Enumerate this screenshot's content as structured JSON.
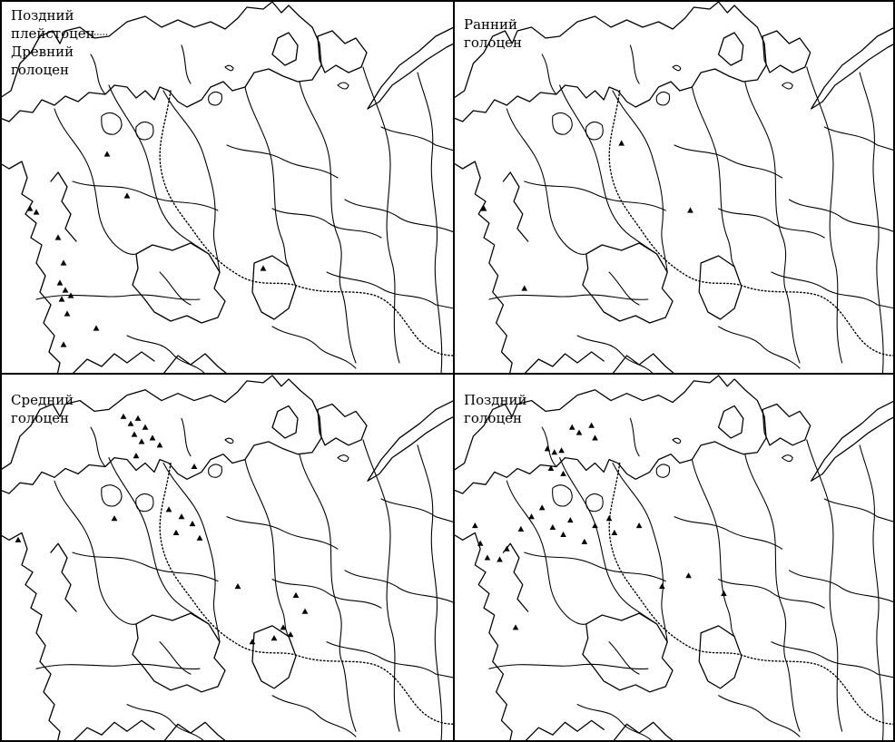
{
  "figure": {
    "panels": [
      {
        "id": "late-pleistocene-early-holocene",
        "label_lines": [
          "Поздний",
          "плейстоцен",
          "Древний",
          "голоцен"
        ],
        "legend": "dotted-line"
      },
      {
        "id": "early-holocene",
        "label_lines": [
          "Ранний",
          "голоцен"
        ]
      },
      {
        "id": "middle-holocene",
        "label_lines": [
          "Средний",
          "голоцен"
        ]
      },
      {
        "id": "late-holocene",
        "label_lines": [
          "Поздний",
          "голоцен"
        ]
      }
    ],
    "symbols": {
      "site_marker": "filled-triangle-icon",
      "boundary": "dotted-line"
    },
    "colors": {
      "ink": "#000000",
      "paper": "#ffffff"
    }
  }
}
